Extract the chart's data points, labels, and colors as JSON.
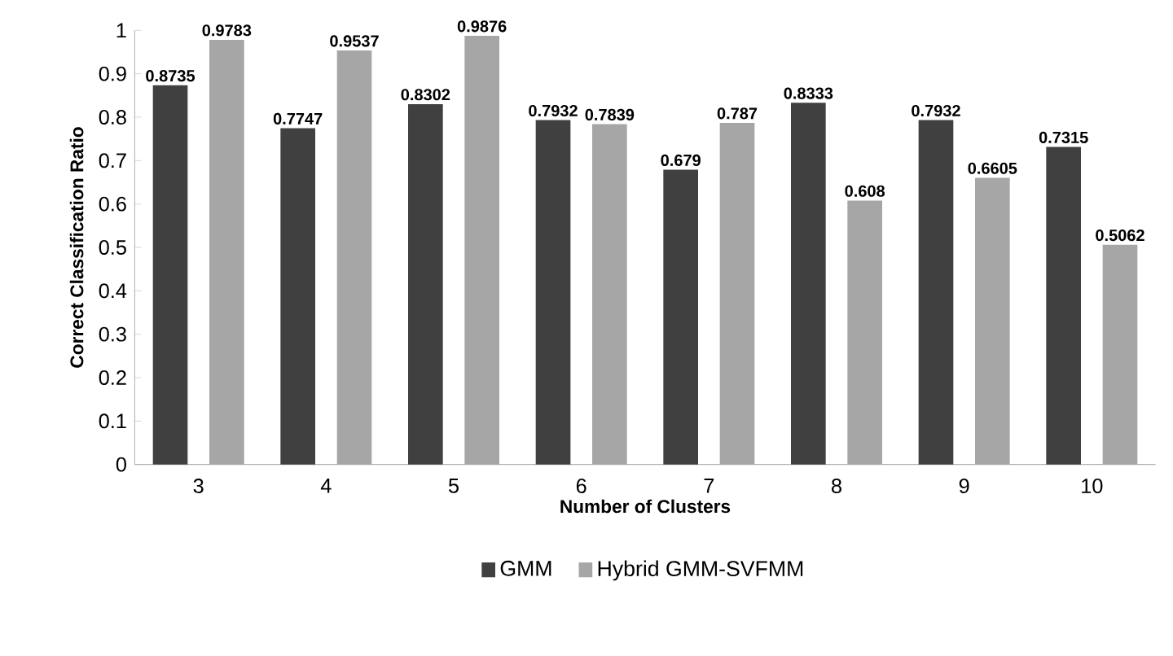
{
  "chart_data": {
    "type": "bar",
    "xlabel": "Number of Clusters",
    "ylabel": "Correct Classification Ratio",
    "categories": [
      "3",
      "4",
      "5",
      "6",
      "7",
      "8",
      "9",
      "10"
    ],
    "series": [
      {
        "name": "GMM",
        "color": "#404040",
        "values": [
          0.8735,
          0.7747,
          0.8302,
          0.7932,
          0.679,
          0.8333,
          0.7932,
          0.7315
        ],
        "value_labels": [
          "0.8735",
          "0.7747",
          "0.8302",
          "0.7932",
          "0.679",
          "0.8333",
          "0.7932",
          "0.7315"
        ]
      },
      {
        "name": "Hybrid GMM-SVFMM",
        "color": "#a6a6a6",
        "values": [
          0.9783,
          0.9537,
          0.9876,
          0.7839,
          0.787,
          0.608,
          0.6605,
          0.5062
        ],
        "value_labels": [
          "0.9783",
          "0.9537",
          "0.9876",
          "0.7839",
          "0.787",
          "0.608",
          "0.6605",
          "0.5062"
        ]
      }
    ],
    "ylim": [
      0,
      1
    ],
    "yticks": [
      0,
      0.1,
      0.2,
      0.3,
      0.4,
      0.5,
      0.6,
      0.7,
      0.8,
      0.9,
      1
    ],
    "legend": "bottom"
  }
}
